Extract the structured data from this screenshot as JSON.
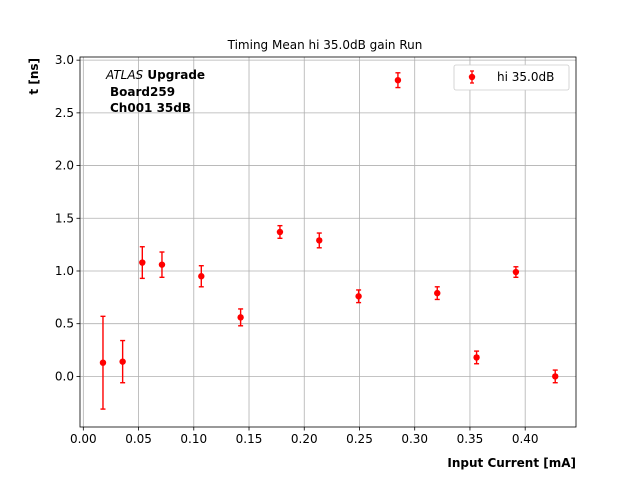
{
  "chart_data": {
    "type": "scatter",
    "title": "Timing Mean hi 35.0dB gain Run",
    "xlabel": "Input Current [mA]",
    "ylabel": "t [ns]",
    "xlim": [
      -0.003,
      0.446
    ],
    "ylim": [
      -0.48,
      3.03
    ],
    "x_ticks": [
      0.0,
      0.05,
      0.1,
      0.15,
      0.2,
      0.25,
      0.3,
      0.35,
      0.4
    ],
    "x_tick_labels": [
      "0.00",
      "0.05",
      "0.10",
      "0.15",
      "0.20",
      "0.25",
      "0.30",
      "0.35",
      "0.40"
    ],
    "y_ticks": [
      0.0,
      0.5,
      1.0,
      1.5,
      2.0,
      2.5,
      3.0
    ],
    "y_tick_labels": [
      "0.0",
      "0.5",
      "1.0",
      "1.5",
      "2.0",
      "2.5",
      "3.0"
    ],
    "grid": true,
    "legend_position": "top-right",
    "annotations": {
      "experiment": "ATLAS",
      "experiment_suffix": "Upgrade",
      "line2": "Board259",
      "line3": "Ch001 35dB"
    },
    "series": [
      {
        "name": "hi 35.0dB",
        "color": "#ff0000",
        "x": [
          0.0178,
          0.0356,
          0.0534,
          0.0712,
          0.1068,
          0.1424,
          0.178,
          0.2136,
          0.2492,
          0.2848,
          0.3204,
          0.356,
          0.3916,
          0.4272
        ],
        "y": [
          0.13,
          0.14,
          1.08,
          1.06,
          0.95,
          0.56,
          1.37,
          1.29,
          0.76,
          2.81,
          0.79,
          0.18,
          0.99,
          0.0
        ],
        "yerr": [
          0.44,
          0.2,
          0.15,
          0.12,
          0.1,
          0.08,
          0.06,
          0.07,
          0.06,
          0.07,
          0.06,
          0.06,
          0.05,
          0.06
        ]
      }
    ]
  }
}
